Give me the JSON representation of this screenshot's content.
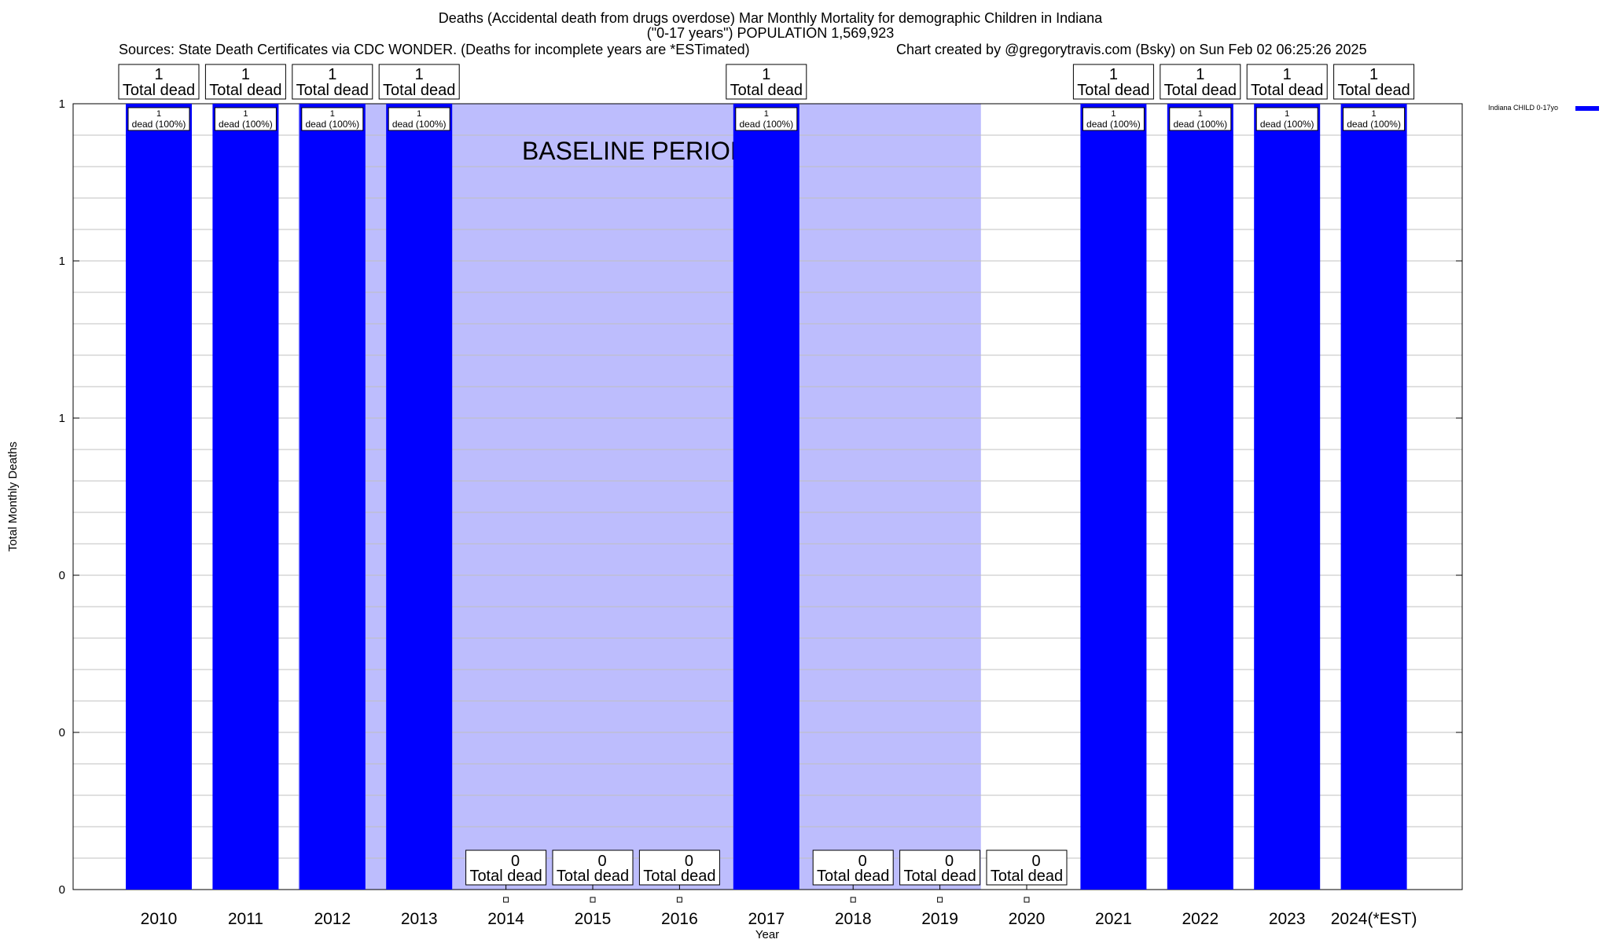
{
  "header": {
    "title_line1": "Deaths (Accidental death from drugs overdose) Mar Monthly Mortality for demographic Children in Indiana",
    "title_line2": "(\"0-17 years\") POPULATION 1,569,923",
    "sources": "Sources: State Death Certificates via CDC WONDER. (Deaths for incomplete years are *ESTimated)",
    "credit": "Chart created by @gregorytravis.com (Bsky) on Sun Feb 02 06:25:26 2025"
  },
  "chart_data": {
    "type": "bar",
    "xlabel": "Year",
    "ylabel": "Total Monthly Deaths",
    "ylim": [
      0,
      1
    ],
    "y_tick_labels": [
      "0",
      "0",
      "0",
      "1",
      "1",
      "1"
    ],
    "categories": [
      "2010",
      "2011",
      "2012",
      "2013",
      "2014",
      "2015",
      "2016",
      "2017",
      "2018",
      "2019",
      "2020",
      "2021",
      "2022",
      "2023",
      "2024(*EST)"
    ],
    "series": [
      {
        "name": "Indiana CHILD 0-17yo",
        "values": [
          1,
          1,
          1,
          1,
          0,
          0,
          0,
          1,
          0,
          0,
          0,
          1,
          1,
          1,
          1
        ]
      }
    ],
    "total_labels": [
      "1",
      "1",
      "1",
      "1",
      "0",
      "0",
      "0",
      "1",
      "0",
      "0",
      "0",
      "1",
      "1",
      "1",
      "1"
    ],
    "total_suffix": "Total dead",
    "percent_labels": [
      "dead (100%)",
      "dead (100%)",
      "dead (100%)",
      "dead (100%)",
      "",
      "",
      "",
      "dead (100%)",
      "",
      "",
      "",
      "dead (100%)",
      "dead (100%)",
      "dead (100%)",
      "dead (100%)"
    ],
    "baseline_label": "BASELINE PERIOD",
    "baseline_range": [
      "2012",
      "2019"
    ],
    "legend_position": "top-right",
    "grid": true,
    "colors": {
      "bar": "#0000ff",
      "baseline": "#bdbdfd",
      "grid": "#c0c0c0"
    }
  }
}
